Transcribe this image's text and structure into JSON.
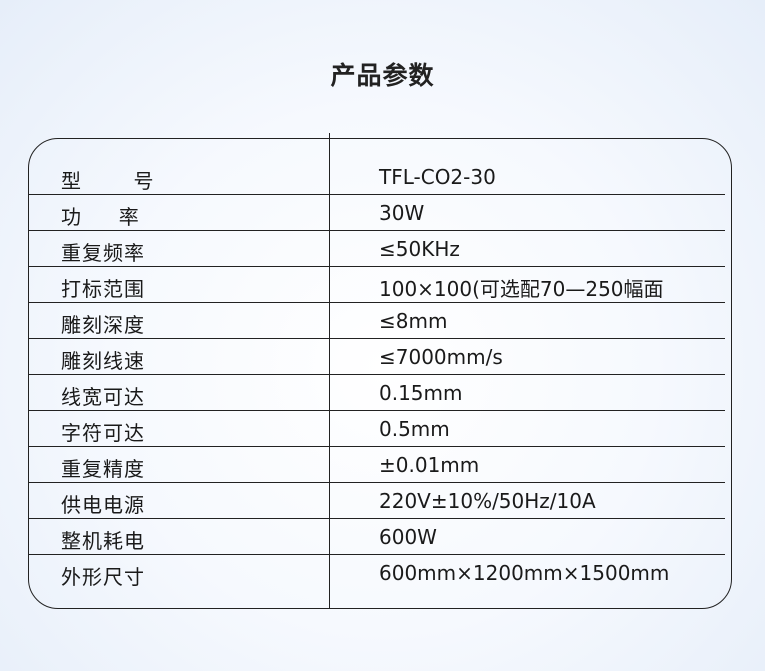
{
  "title": "产品参数",
  "rows": [
    {
      "label": "型       号",
      "value": "TFL-CO2-30"
    },
    {
      "label": "功     率",
      "value": "30W"
    },
    {
      "label": "重复频率",
      "value": "≤50KHz"
    },
    {
      "label": "打标范围",
      "value": "100×100(可选配70—250幅面"
    },
    {
      "label": "雕刻深度",
      "value": "≤8mm"
    },
    {
      "label": "雕刻线速",
      "value": "≤7000mm/s"
    },
    {
      "label": "线宽可达",
      "value": "0.15mm"
    },
    {
      "label": "字符可达",
      "value": "0.5mm"
    },
    {
      "label": "重复精度",
      "value": "±0.01mm"
    },
    {
      "label": "供电电源",
      "value": "220V±10%/50Hz/10A"
    },
    {
      "label": "整机耗电",
      "value": "600W"
    },
    {
      "label": "外形尺寸",
      "value": "600mm×1200mm×1500mm"
    }
  ]
}
